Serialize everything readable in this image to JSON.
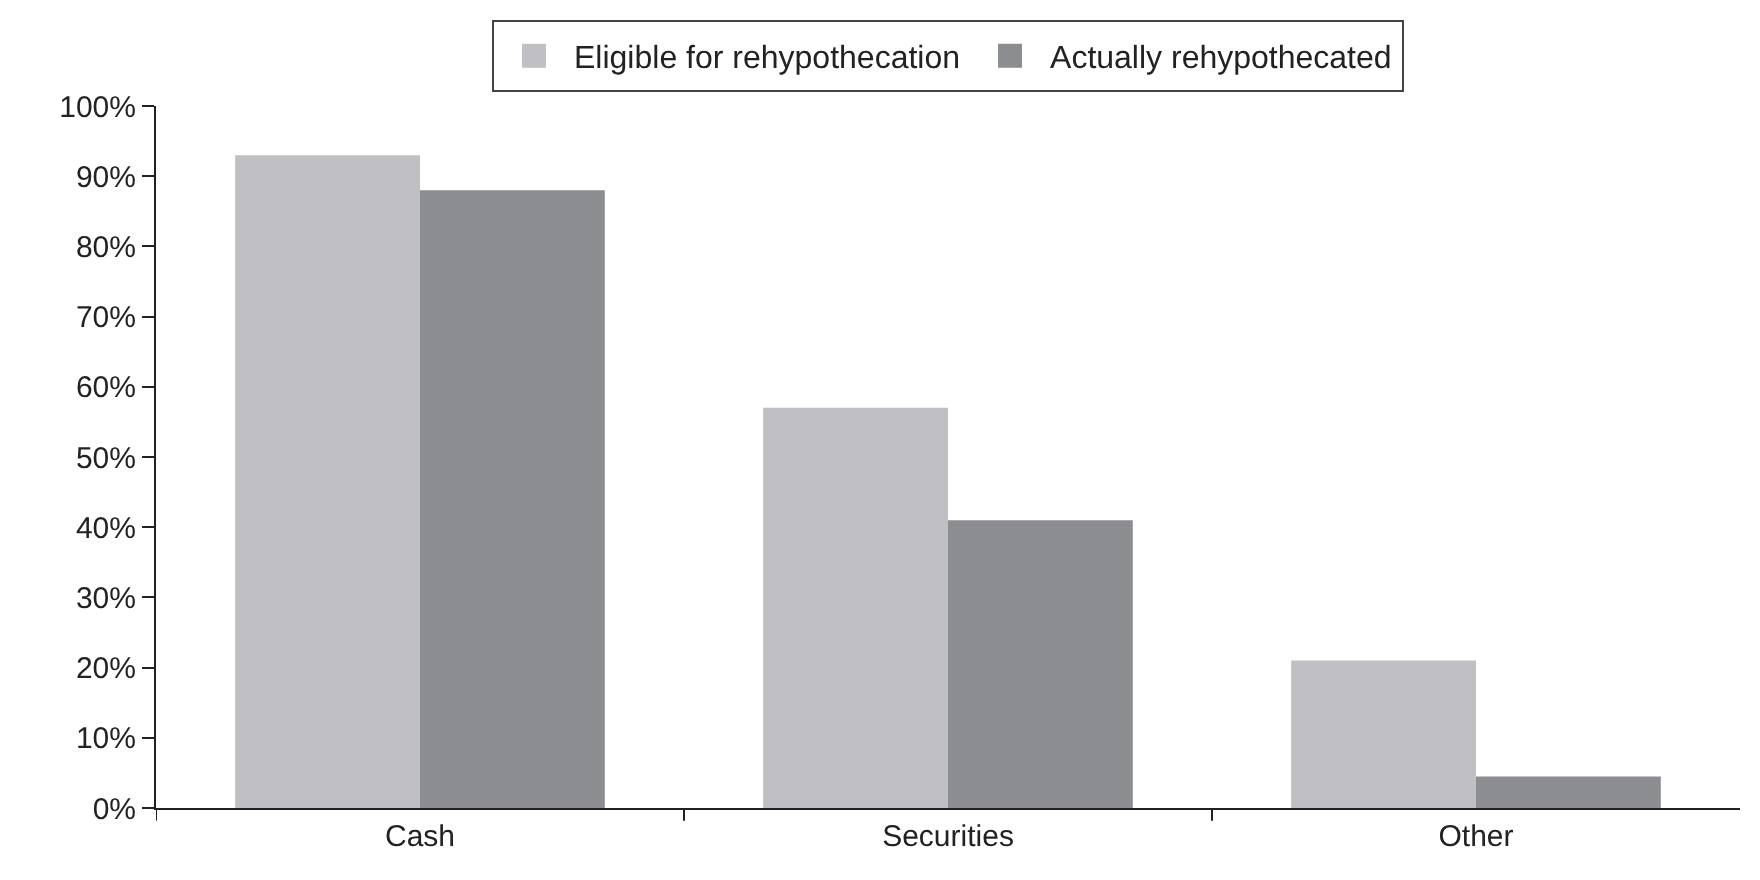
{
  "chart_data": {
    "type": "bar",
    "categories": [
      "Cash",
      "Securities",
      "Other"
    ],
    "series": [
      {
        "name": "Eligible for rehypothecation",
        "color": "#c0c0c4",
        "values": [
          93,
          57,
          21
        ]
      },
      {
        "name": "Actually rehypothecated",
        "color": "#8c8d91",
        "values": [
          88,
          41,
          4.5
        ]
      }
    ],
    "ylim": [
      0,
      100
    ],
    "yticks": [
      {
        "value": 0,
        "label": "0%"
      },
      {
        "value": 10,
        "label": "10%"
      },
      {
        "value": 20,
        "label": "20%"
      },
      {
        "value": 30,
        "label": "30%"
      },
      {
        "value": 40,
        "label": "40%"
      },
      {
        "value": 50,
        "label": "50%"
      },
      {
        "value": 60,
        "label": "60%"
      },
      {
        "value": 70,
        "label": "70%"
      },
      {
        "value": 80,
        "label": "80%"
      },
      {
        "value": 90,
        "label": "90%"
      },
      {
        "value": 100,
        "label": "100%"
      }
    ],
    "grid": false,
    "legend": "top"
  }
}
